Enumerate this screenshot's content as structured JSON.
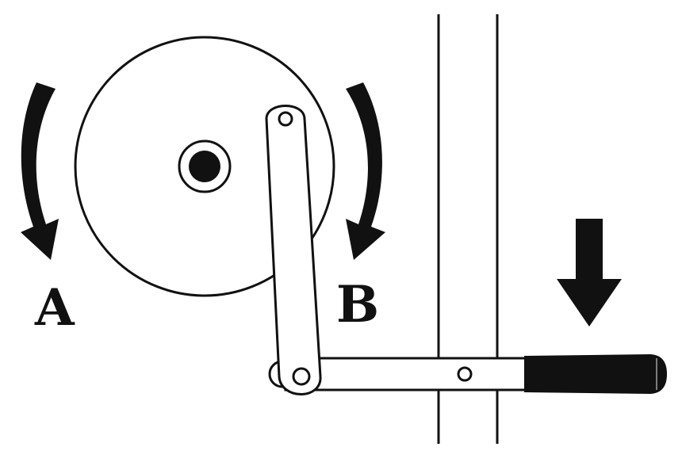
{
  "labels": {
    "a": "A",
    "b": "B"
  },
  "colors": {
    "ink": "#111111",
    "background": "#ffffff"
  },
  "icons": {
    "arrow_a": "curved-arrow-counterclockwise-icon",
    "arrow_b": "curved-arrow-clockwise-icon",
    "force": "down-arrow-icon"
  }
}
